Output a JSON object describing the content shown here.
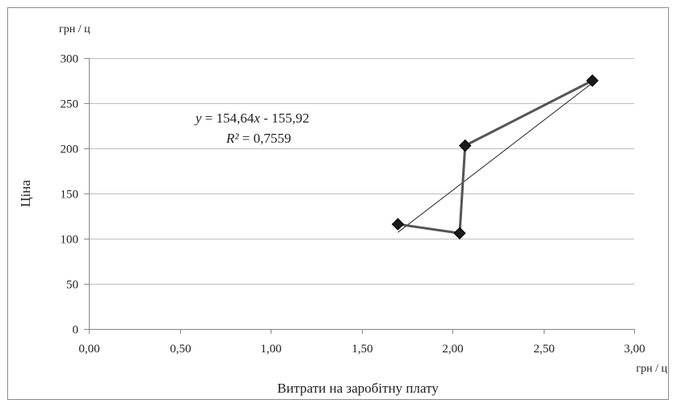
{
  "chart_data": {
    "type": "scatter",
    "xlabel": "Витрати на заробітну плату",
    "ylabel": "Ціна",
    "x_unit": "грн / ц",
    "y_unit": "грн / ц",
    "xlim": [
      0,
      3
    ],
    "ylim": [
      0,
      300
    ],
    "x_ticks": [
      "0,00",
      "0,50",
      "1,00",
      "1,50",
      "2,00",
      "2,50",
      "3,00"
    ],
    "y_ticks": [
      "0",
      "50",
      "100",
      "150",
      "200",
      "250",
      "300"
    ],
    "grid": "horizontal",
    "series": [
      {
        "points": [
          {
            "x": 1.7,
            "y": 116
          },
          {
            "x": 2.04,
            "y": 106
          },
          {
            "x": 2.07,
            "y": 203
          },
          {
            "x": 2.77,
            "y": 275
          }
        ],
        "color": "#555555",
        "marker": "diamond",
        "marker_color": "#1a1a1a"
      }
    ],
    "trendline": {
      "type": "linear",
      "slope": 154.64,
      "intercept": -155.92,
      "x_range": [
        1.7,
        2.77
      ],
      "color": "#222222",
      "equation_prefix": "y",
      "equation_rest": " = 154,64",
      "equation_var": "x",
      "equation_tail": " - 155,92",
      "r2_prefix": "R²",
      "r2_rest": " = 0,7559"
    },
    "border_color": "#8c8c8c",
    "grid_color": "#bdbdbd"
  }
}
